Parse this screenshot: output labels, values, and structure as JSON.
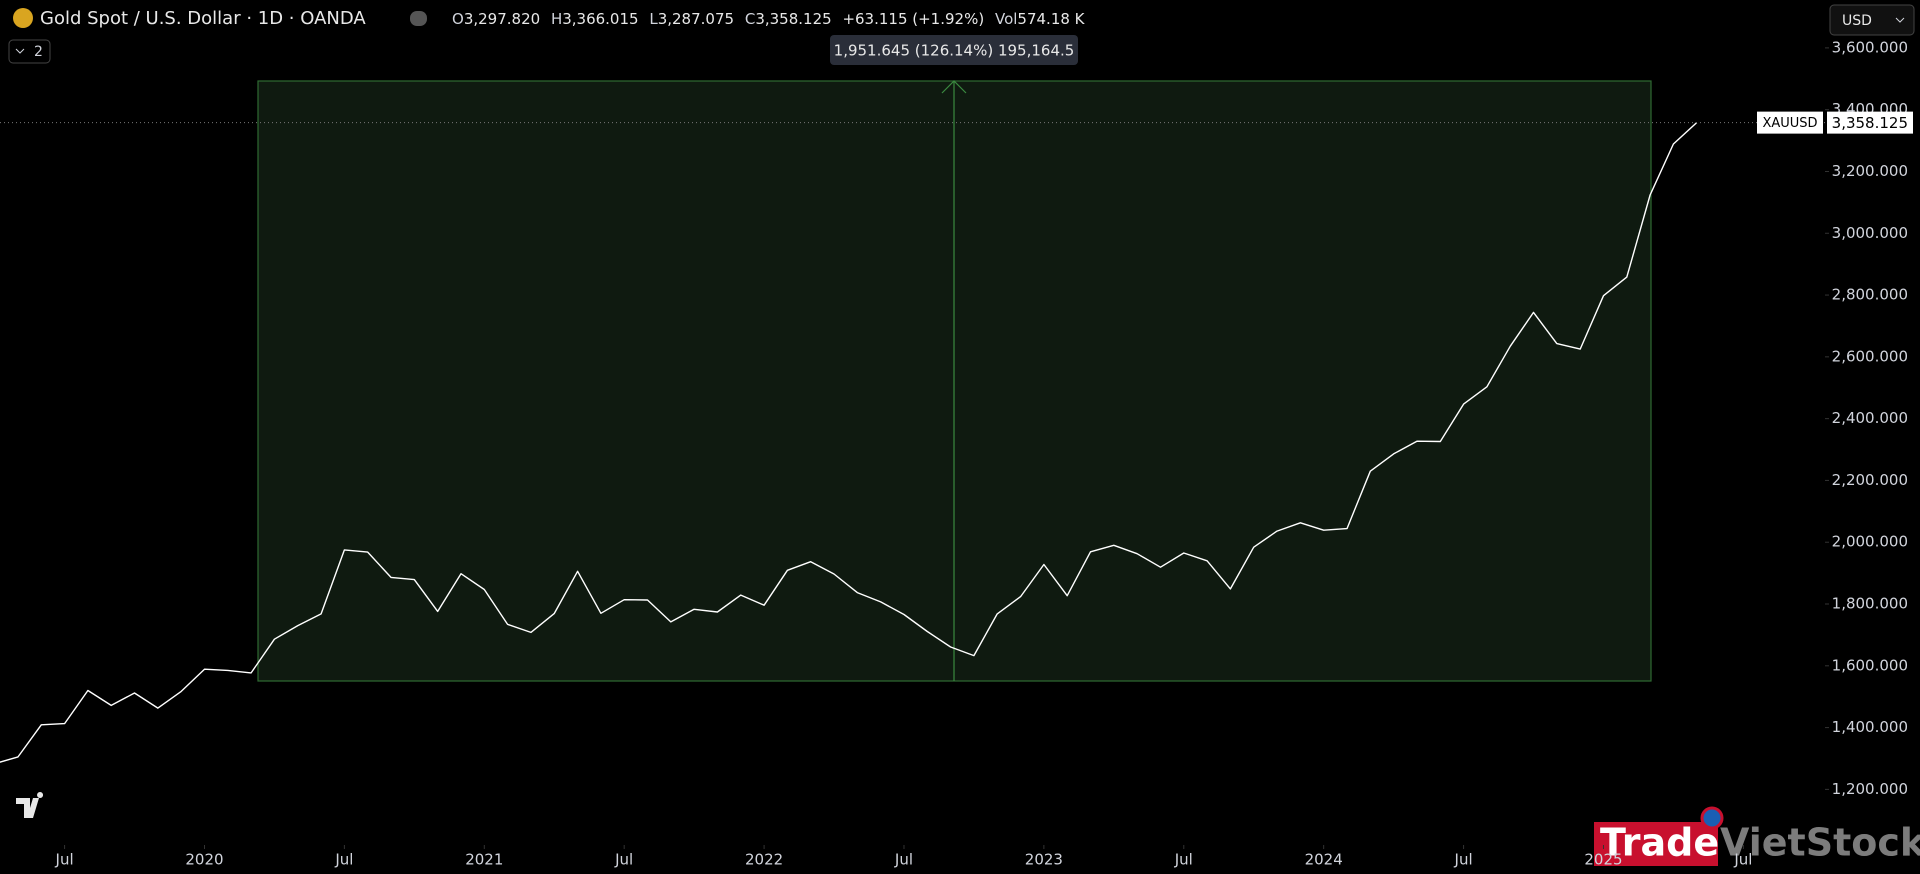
{
  "header": {
    "symbol": "Gold Spot / U.S. Dollar · 1D · OANDA",
    "open_label": "O",
    "open": "3,297.820",
    "high_label": "H",
    "high": "3,366.015",
    "low_label": "L",
    "low": "3,287.075",
    "close_label": "C",
    "close": "3,358.125",
    "change": "+63.115 (+1.92%)",
    "vol_label": "Vol",
    "vol": "574.18 K",
    "indicators": "2",
    "currency": "USD",
    "ticker": "XAUUSD",
    "last_price": "3,358.125"
  },
  "measure_label": "1,951.645 (126.14%) 195,164.5",
  "watermark": {
    "part1": "Trade",
    "part2": "VietStock"
  },
  "chart_data": {
    "type": "line",
    "color": "#ffffff",
    "grid": false,
    "x": [
      "2019-04",
      "2019-05",
      "2019-06",
      "2019-07",
      "2019-08",
      "2019-09",
      "2019-10",
      "2019-11",
      "2019-12",
      "2020-01",
      "2020-02",
      "2020-03",
      "2020-04",
      "2020-05",
      "2020-06",
      "2020-07",
      "2020-08",
      "2020-09",
      "2020-10",
      "2020-11",
      "2020-12",
      "2021-01",
      "2021-02",
      "2021-03",
      "2021-04",
      "2021-05",
      "2021-06",
      "2021-07",
      "2021-08",
      "2021-09",
      "2021-10",
      "2021-11",
      "2021-12",
      "2022-01",
      "2022-02",
      "2022-03",
      "2022-04",
      "2022-05",
      "2022-06",
      "2022-07",
      "2022-08",
      "2022-09",
      "2022-10",
      "2022-11",
      "2022-12",
      "2023-01",
      "2023-02",
      "2023-03",
      "2023-04",
      "2023-05",
      "2023-06",
      "2023-07",
      "2023-08",
      "2023-09",
      "2023-10",
      "2023-11",
      "2023-12",
      "2024-01",
      "2024-02",
      "2024-03",
      "2024-04",
      "2024-05",
      "2024-06",
      "2024-07",
      "2024-08",
      "2024-09",
      "2024-10",
      "2024-11",
      "2024-12",
      "2025-01",
      "2025-02",
      "2025-03",
      "2025-04",
      "2025-05"
    ],
    "series": [
      {
        "name": "XAUUSD",
        "color": "#ffffff",
        "values": [
          1283,
          1305,
          1409,
          1413,
          1520,
          1472,
          1512,
          1463,
          1517,
          1589,
          1585,
          1577,
          1686,
          1730,
          1768,
          1975,
          1968,
          1886,
          1879,
          1776,
          1898,
          1847,
          1734,
          1708,
          1769,
          1906,
          1770,
          1814,
          1813,
          1742,
          1783,
          1774,
          1829,
          1796,
          1909,
          1937,
          1897,
          1837,
          1807,
          1766,
          1711,
          1661,
          1633,
          1768,
          1824,
          1928,
          1827,
          1969,
          1990,
          1963,
          1919,
          1965,
          1940,
          1849,
          1984,
          2036,
          2063,
          2039,
          2044,
          2230,
          2286,
          2327,
          2326,
          2447,
          2503,
          2634,
          2744,
          2643,
          2625,
          2798,
          2858,
          3124,
          3289,
          3358.125
        ]
      }
    ],
    "ylim": [
      1020,
      3755
    ],
    "yticks": [
      {
        "value": 1200,
        "label": "1,200.000"
      },
      {
        "value": 1400,
        "label": "1,400.000"
      },
      {
        "value": 1600,
        "label": "1,600.000"
      },
      {
        "value": 1800,
        "label": "1,800.000"
      },
      {
        "value": 2000,
        "label": "2,000.000"
      },
      {
        "value": 2200,
        "label": "2,200.000"
      },
      {
        "value": 2400,
        "label": "2,400.000"
      },
      {
        "value": 2600,
        "label": "2,600.000"
      },
      {
        "value": 2800,
        "label": "2,800.000"
      },
      {
        "value": 3000,
        "label": "3,000.000"
      },
      {
        "value": 3200,
        "label": "3,200.000"
      },
      {
        "value": 3400,
        "label": "3,400.000"
      },
      {
        "value": 3600,
        "label": "3,600.000"
      }
    ],
    "xticks": [
      {
        "value": "2019-07",
        "label": "Jul"
      },
      {
        "value": "2020-01",
        "label": "2020"
      },
      {
        "value": "2020-07",
        "label": "Jul"
      },
      {
        "value": "2021-01",
        "label": "2021"
      },
      {
        "value": "2021-07",
        "label": "Jul"
      },
      {
        "value": "2022-01",
        "label": "2022"
      },
      {
        "value": "2022-07",
        "label": "Jul"
      },
      {
        "value": "2023-01",
        "label": "2023"
      },
      {
        "value": "2023-07",
        "label": "Jul"
      },
      {
        "value": "2024-01",
        "label": "2024"
      },
      {
        "value": "2024-07",
        "label": "Jul"
      },
      {
        "value": "2025-01",
        "label": "2025"
      },
      {
        "value": "2025-07",
        "label": "Jul"
      }
    ]
  }
}
